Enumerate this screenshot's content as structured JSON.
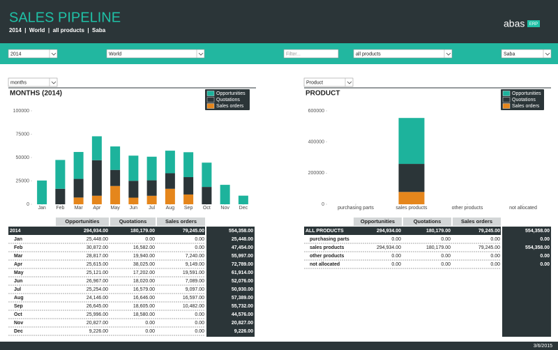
{
  "header": {
    "title": "SALES PIPELINE",
    "subtitle": "2014  |  World  |  all products  |  Saba",
    "logo": "abas",
    "logo_badge": "ERP"
  },
  "filters": {
    "year": "2014",
    "region": "World",
    "filter_placeholder": "Filter...",
    "products": "all products",
    "user": "Saba"
  },
  "panels": [
    {
      "selector": "months"
    },
    {
      "selector": "Product"
    }
  ],
  "chart_data": [
    {
      "type": "bar",
      "stacked": true,
      "title": "MONTHS (2014)",
      "legend": "top-right",
      "categories": [
        "Jan",
        "Feb",
        "Mar",
        "Apr",
        "May",
        "Jun",
        "Jul",
        "Aug",
        "Sep",
        "Oct",
        "Nov",
        "Dec"
      ],
      "series": [
        {
          "name": "Opportunities",
          "color": "#1db39c",
          "values": [
            25448,
            30872,
            28817,
            25615,
            25121,
            26967,
            25254,
            24146,
            26645,
            25996,
            20827,
            9226
          ]
        },
        {
          "name": "Quotations",
          "color": "#2b3538",
          "values": [
            0,
            16582,
            19940,
            38025,
            17202,
            18020,
            16579,
            16646,
            18605,
            18580,
            0,
            0
          ]
        },
        {
          "name": "Sales orders",
          "color": "#e5861c",
          "values": [
            0,
            0,
            7240,
            9149,
            19591,
            7089,
            9097,
            16597,
            10482,
            0,
            0,
            0
          ]
        }
      ],
      "ylim": [
        0,
        100000
      ],
      "yticks": [
        0,
        25000,
        50000,
        75000,
        100000
      ]
    },
    {
      "type": "bar",
      "stacked": true,
      "title": "PRODUCT",
      "legend": "top-right",
      "categories": [
        "purchasing parts",
        "sales products",
        "other products",
        "not allocated"
      ],
      "series": [
        {
          "name": "Opportunities",
          "color": "#1db39c",
          "values": [
            0,
            294934,
            0,
            0
          ]
        },
        {
          "name": "Quotations",
          "color": "#2b3538",
          "values": [
            0,
            180179,
            0,
            0
          ]
        },
        {
          "name": "Sales orders",
          "color": "#e5861c",
          "values": [
            0,
            79245,
            0,
            0
          ]
        }
      ],
      "ylim": [
        0,
        600000
      ],
      "yticks": [
        0,
        200000,
        400000,
        600000
      ]
    }
  ],
  "tables": [
    {
      "columns": [
        "Opportunities",
        "Quotations",
        "Sales orders"
      ],
      "total_row": [
        "2014",
        "294,934.00",
        "180,179.00",
        "79,245.00",
        "554,358.00"
      ],
      "rows": [
        [
          "Jan",
          "25,448.00",
          "0.00",
          "0.00",
          "25,448.00"
        ],
        [
          "Feb",
          "30,872.00",
          "16,582.00",
          "0.00",
          "47,454.00"
        ],
        [
          "Mar",
          "28,817.00",
          "19,940.00",
          "7,240.00",
          "55,997.00"
        ],
        [
          "Apr",
          "25,615.00",
          "38,025.00",
          "9,149.00",
          "72,789.00"
        ],
        [
          "May",
          "25,121.00",
          "17,202.00",
          "19,591.00",
          "61,914.00"
        ],
        [
          "Jun",
          "26,967.00",
          "18,020.00",
          "7,089.00",
          "52,076.00"
        ],
        [
          "Jul",
          "25,254.00",
          "16,579.00",
          "9,097.00",
          "50,930.00"
        ],
        [
          "Aug",
          "24,146.00",
          "16,646.00",
          "16,597.00",
          "57,389.00"
        ],
        [
          "Sep",
          "26,645.00",
          "18,605.00",
          "10,482.00",
          "55,732.00"
        ],
        [
          "Oct",
          "25,996.00",
          "18,580.00",
          "0.00",
          "44,576.00"
        ],
        [
          "Nov",
          "20,827.00",
          "0.00",
          "0.00",
          "20,827.00"
        ],
        [
          "Dec",
          "9,226.00",
          "0.00",
          "0.00",
          "9,226.00"
        ]
      ]
    },
    {
      "columns": [
        "Opportunities",
        "Quotations",
        "Sales orders"
      ],
      "total_row": [
        "ALL PRODUCTS",
        "294,934.00",
        "180,179.00",
        "79,245.00",
        "554,358.00"
      ],
      "rows": [
        [
          "purchasing parts",
          "0.00",
          "0.00",
          "0.00",
          "0.00"
        ],
        [
          "sales products",
          "294,934.00",
          "180,179.00",
          "79,245.00",
          "554,358.00"
        ],
        [
          "other products",
          "0.00",
          "0.00",
          "0.00",
          "0.00"
        ],
        [
          "not allocated",
          "0.00",
          "0.00",
          "0.00",
          "0.00"
        ]
      ]
    }
  ],
  "footer": {
    "date": "3/6/2015"
  }
}
